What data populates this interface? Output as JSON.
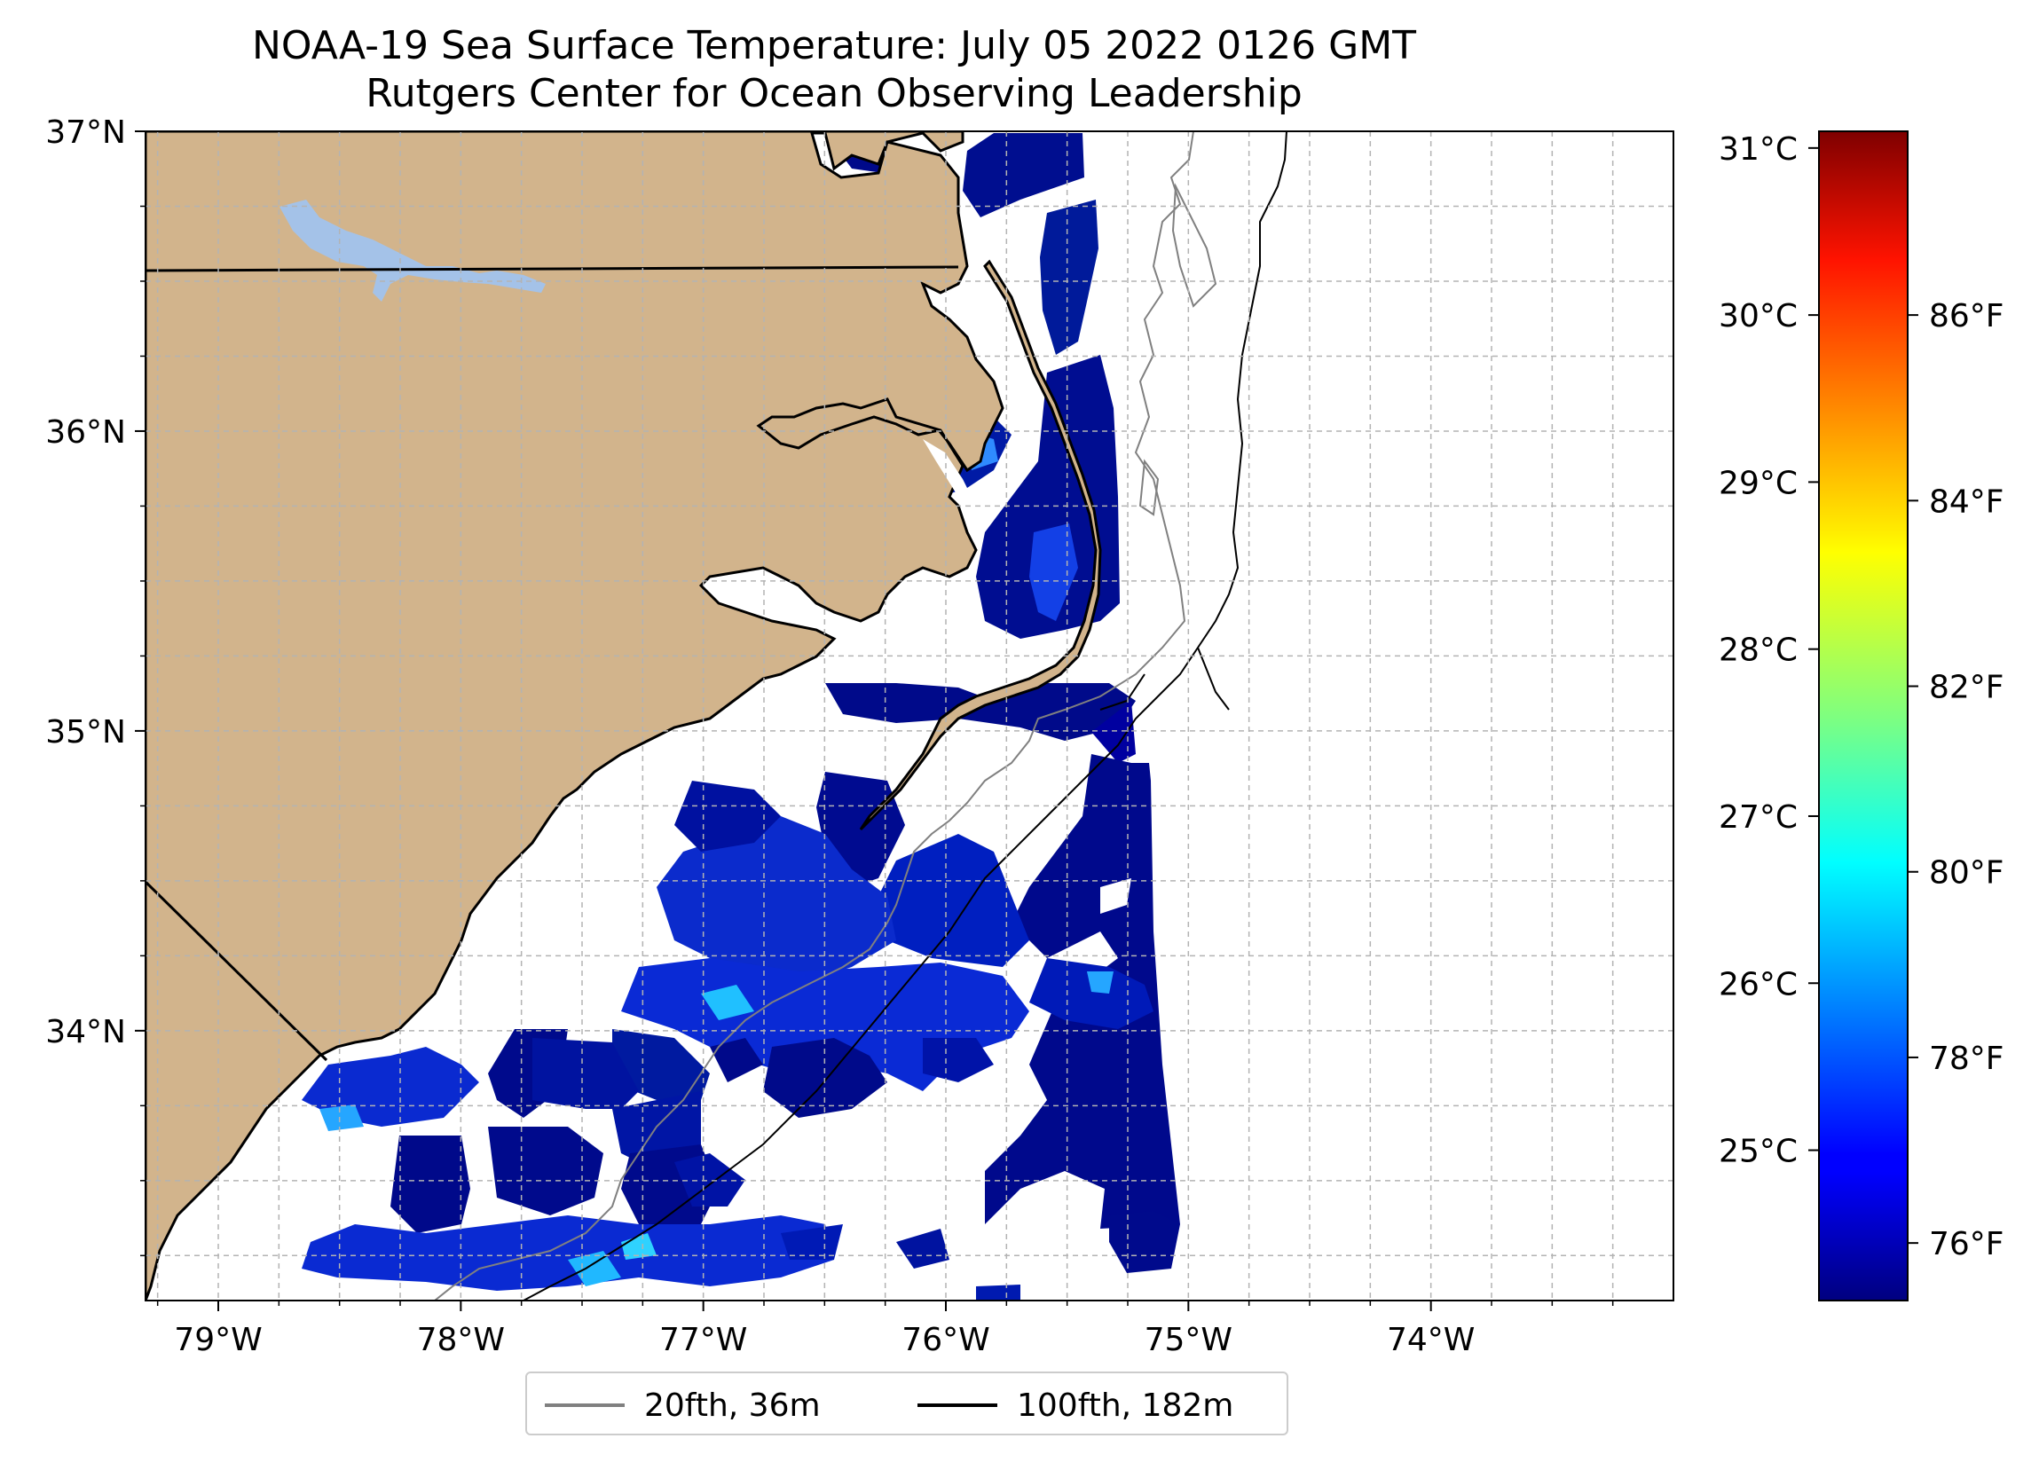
{
  "title": {
    "line1": "NOAA-19 Sea Surface Temperature: July 05 2022 0126 GMT",
    "line2": "Rutgers Center for Ocean Observing Leadership"
  },
  "map": {
    "lon_range": [
      -79.3,
      -73.0
    ],
    "lat_range": [
      33.1,
      37.0
    ],
    "lon_ticks": [
      {
        "value": -79,
        "label": "79°W"
      },
      {
        "value": -78,
        "label": "78°W"
      },
      {
        "value": -77,
        "label": "77°W"
      },
      {
        "value": -76,
        "label": "76°W"
      },
      {
        "value": -75,
        "label": "75°W"
      },
      {
        "value": -74,
        "label": "74°W"
      }
    ],
    "lat_ticks": [
      {
        "value": 37,
        "label": "37°N"
      },
      {
        "value": 36,
        "label": "36°N"
      },
      {
        "value": 35,
        "label": "35°N"
      },
      {
        "value": 34,
        "label": "34°N"
      }
    ],
    "grid": true,
    "land_color": "#d2b48c",
    "lake_color": "#a4c2e8",
    "ocean_color": "#ffffff"
  },
  "colorbar": {
    "colormap": "jet",
    "celsius_range": [
      24.1,
      31.1
    ],
    "celsius_ticks": [
      {
        "value": 25,
        "label": "25°C"
      },
      {
        "value": 26,
        "label": "26°C"
      },
      {
        "value": 27,
        "label": "27°C"
      },
      {
        "value": 28,
        "label": "28°C"
      },
      {
        "value": 29,
        "label": "29°C"
      },
      {
        "value": 30,
        "label": "30°C"
      },
      {
        "value": 31,
        "label": "31°C"
      }
    ],
    "fahrenheit_ticks": [
      {
        "value": 76,
        "label": "76°F"
      },
      {
        "value": 78,
        "label": "78°F"
      },
      {
        "value": 80,
        "label": "80°F"
      },
      {
        "value": 82,
        "label": "82°F"
      },
      {
        "value": 84,
        "label": "84°F"
      },
      {
        "value": 86,
        "label": "86°F"
      }
    ]
  },
  "legend": {
    "placement": "below",
    "items": [
      {
        "label": "20fth, 36m",
        "color": "#808080"
      },
      {
        "label": "100fth, 182m",
        "color": "#000000"
      }
    ]
  }
}
